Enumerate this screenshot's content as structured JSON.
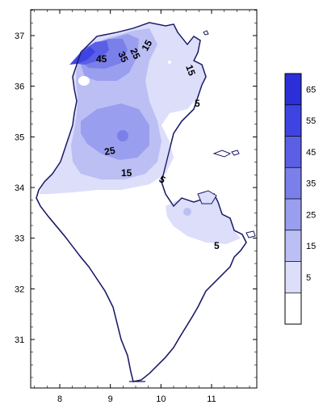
{
  "map": {
    "y_axis": {
      "ticks": [
        {
          "value": 37,
          "label": "37"
        },
        {
          "value": 36,
          "label": "36"
        },
        {
          "value": 35,
          "label": "35"
        },
        {
          "value": 34,
          "label": "34"
        },
        {
          "value": 33,
          "label": "33"
        },
        {
          "value": 32,
          "label": "32"
        },
        {
          "value": 31,
          "label": "31"
        }
      ]
    },
    "x_axis": {
      "ticks": [
        {
          "value": 8,
          "label": "8"
        },
        {
          "value": 9,
          "label": "9"
        },
        {
          "value": 10,
          "label": "10"
        },
        {
          "value": 11,
          "label": "11"
        }
      ]
    },
    "contour_labels": [
      "45",
      "35",
      "25",
      "15",
      "15",
      "5",
      "25",
      "15",
      "5",
      "5"
    ]
  },
  "legend": {
    "levels": [
      "65",
      "55",
      "45",
      "35",
      "25",
      "15",
      "5"
    ],
    "colors": [
      "#2a2fd8",
      "#3e44e2",
      "#5a5fe6",
      "#7a7fe9",
      "#9a9eee",
      "#bcbff4",
      "#dcdefa",
      "#ffffff"
    ]
  },
  "colors": {
    "outline": "#1a1a66",
    "frame": "#000000"
  }
}
